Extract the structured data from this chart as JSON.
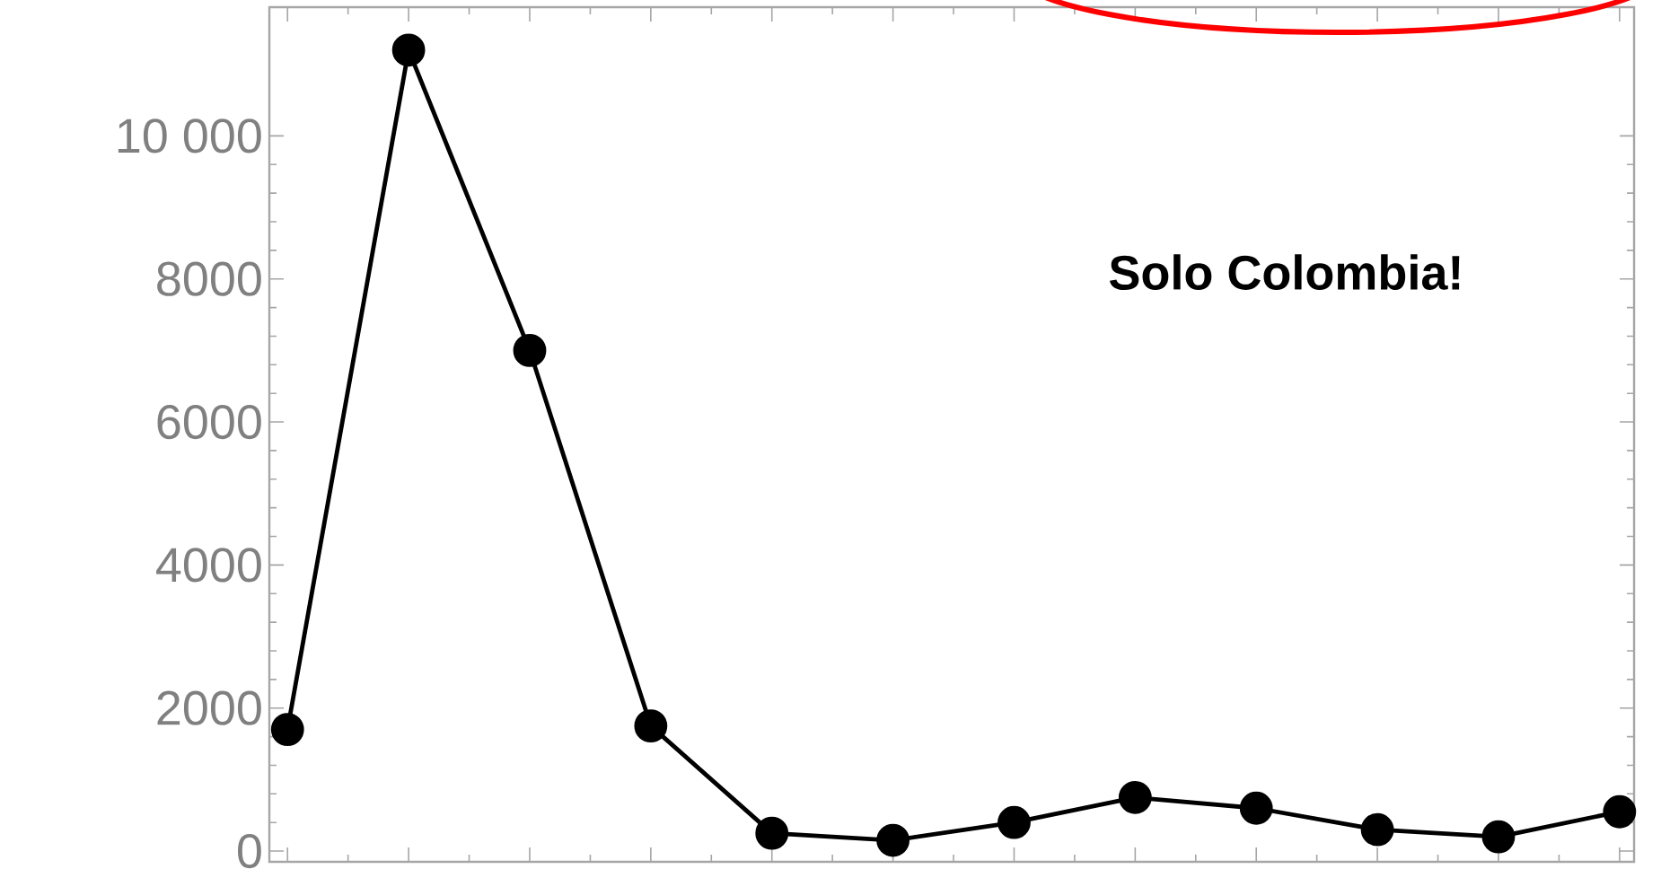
{
  "chart_data": {
    "type": "line",
    "categories": [
      null,
      null,
      null,
      null,
      null,
      null,
      null,
      null,
      null,
      null,
      null,
      null
    ],
    "values": [
      1700,
      11200,
      7000,
      1750,
      250,
      150,
      400,
      750,
      600,
      300,
      200,
      550
    ],
    "color": "#000000",
    "marker": "circle",
    "line_style": "solid",
    "grid": false,
    "tick_labels": "y",
    "ylim": [
      -150,
      11800
    ],
    "yticks": [
      0,
      2000,
      4000,
      6000,
      8000,
      {
        "value": 10000,
        "label": "10 000"
      }
    ],
    "annotations": [
      "Solo Colombia!"
    ]
  }
}
